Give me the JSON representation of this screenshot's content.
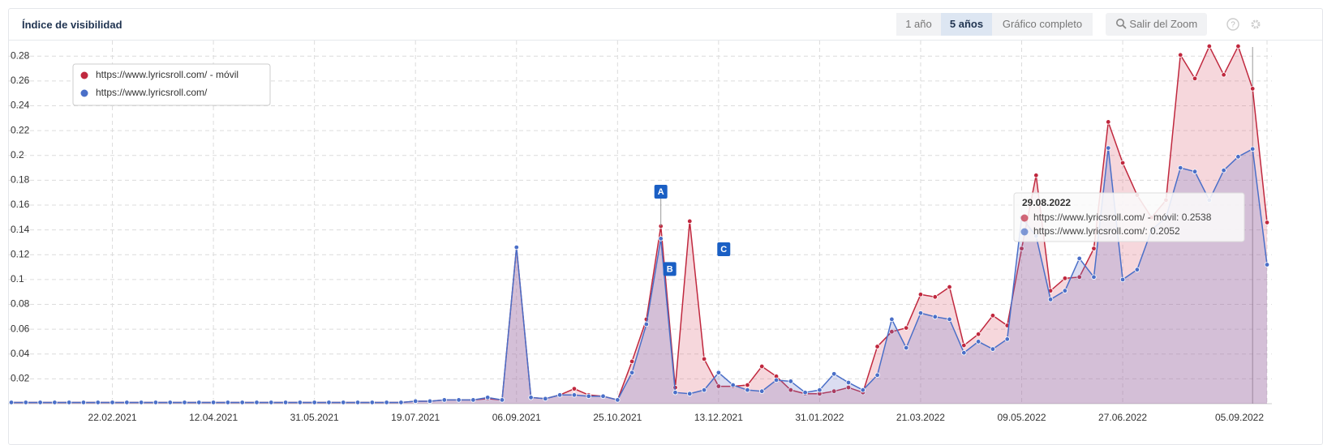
{
  "ui": {
    "range_buttons": [
      "1 año",
      "5 años",
      "Gráfico completo"
    ],
    "active_button": 1,
    "zoom_button": "Salir del Zoom"
  },
  "chart_data": {
    "type": "area",
    "title": "Índice de visibilidad",
    "x": [
      "04.01.2021",
      "11.01.2021",
      "18.01.2021",
      "25.01.2021",
      "01.02.2021",
      "08.02.2021",
      "15.02.2021",
      "22.02.2021",
      "01.03.2021",
      "08.03.2021",
      "15.03.2021",
      "22.03.2021",
      "29.03.2021",
      "05.04.2021",
      "12.04.2021",
      "19.04.2021",
      "26.04.2021",
      "03.05.2021",
      "10.05.2021",
      "17.05.2021",
      "24.05.2021",
      "31.05.2021",
      "07.06.2021",
      "14.06.2021",
      "21.06.2021",
      "28.06.2021",
      "05.07.2021",
      "12.07.2021",
      "19.07.2021",
      "26.07.2021",
      "02.08.2021",
      "09.08.2021",
      "16.08.2021",
      "23.08.2021",
      "30.08.2021",
      "06.09.2021",
      "13.09.2021",
      "20.09.2021",
      "27.09.2021",
      "04.10.2021",
      "11.10.2021",
      "18.10.2021",
      "25.10.2021",
      "01.11.2021",
      "08.11.2021",
      "15.11.2021",
      "22.11.2021",
      "29.11.2021",
      "06.12.2021",
      "13.12.2021",
      "20.12.2021",
      "27.12.2021",
      "03.01.2022",
      "10.01.2022",
      "17.01.2022",
      "24.01.2022",
      "31.01.2022",
      "07.02.2022",
      "14.02.2022",
      "21.02.2022",
      "28.02.2022",
      "07.03.2022",
      "14.03.2022",
      "21.03.2022",
      "28.03.2022",
      "04.04.2022",
      "11.04.2022",
      "18.04.2022",
      "25.04.2022",
      "02.05.2022",
      "09.05.2022",
      "16.05.2022",
      "23.05.2022",
      "30.05.2022",
      "06.06.2022",
      "13.06.2022",
      "20.06.2022",
      "27.06.2022",
      "04.07.2022",
      "11.07.2022",
      "18.07.2022",
      "25.07.2022",
      "01.08.2022",
      "08.08.2022",
      "15.08.2022",
      "22.08.2022",
      "29.08.2022",
      "05.09.2022"
    ],
    "series": [
      {
        "name": "https://www.lyricsroll.com/ - móvil",
        "color": "#c0283e",
        "fill": "rgba(222,110,130,0.28)",
        "values": [
          0.001,
          0.001,
          0.001,
          0.001,
          0.001,
          0.001,
          0.001,
          0.001,
          0.001,
          0.001,
          0.001,
          0.001,
          0.001,
          0.001,
          0.001,
          0.001,
          0.001,
          0.001,
          0.001,
          0.001,
          0.001,
          0.001,
          0.001,
          0.001,
          0.001,
          0.001,
          0.001,
          0.001,
          0.002,
          0.002,
          0.003,
          0.003,
          0.003,
          0.004,
          0.003,
          0.126,
          0.005,
          0.004,
          0.007,
          0.012,
          0.007,
          0.006,
          0.003,
          0.034,
          0.068,
          0.143,
          0.013,
          0.147,
          0.036,
          0.014,
          0.014,
          0.015,
          0.03,
          0.022,
          0.011,
          0.008,
          0.008,
          0.01,
          0.013,
          0.009,
          0.046,
          0.058,
          0.061,
          0.088,
          0.086,
          0.094,
          0.047,
          0.056,
          0.071,
          0.063,
          0.125,
          0.184,
          0.091,
          0.101,
          0.102,
          0.125,
          0.227,
          0.194,
          0.168,
          0.15,
          0.164,
          0.281,
          0.262,
          0.288,
          0.265,
          0.288,
          0.2538,
          0.146
        ]
      },
      {
        "name": "https://www.lyricsroll.com/",
        "color": "#4a6fc8",
        "fill": "rgba(110,120,200,0.25)",
        "values": [
          0.001,
          0.001,
          0.001,
          0.001,
          0.001,
          0.001,
          0.001,
          0.001,
          0.001,
          0.001,
          0.001,
          0.001,
          0.001,
          0.001,
          0.001,
          0.001,
          0.001,
          0.001,
          0.001,
          0.001,
          0.001,
          0.001,
          0.001,
          0.001,
          0.001,
          0.001,
          0.001,
          0.001,
          0.002,
          0.002,
          0.003,
          0.003,
          0.003,
          0.005,
          0.003,
          0.126,
          0.005,
          0.004,
          0.007,
          0.007,
          0.006,
          0.006,
          0.003,
          0.025,
          0.064,
          0.133,
          0.009,
          0.008,
          0.011,
          0.025,
          0.015,
          0.011,
          0.01,
          0.019,
          0.018,
          0.009,
          0.011,
          0.024,
          0.017,
          0.011,
          0.023,
          0.068,
          0.045,
          0.073,
          0.07,
          0.068,
          0.041,
          0.05,
          0.044,
          0.052,
          0.15,
          0.135,
          0.084,
          0.091,
          0.117,
          0.102,
          0.206,
          0.1,
          0.108,
          0.14,
          0.15,
          0.19,
          0.187,
          0.164,
          0.188,
          0.199,
          0.2052,
          0.112
        ]
      }
    ],
    "xlim": [
      "04.01.2021",
      "05.09.2022"
    ],
    "xticks": [
      "22.02.2021",
      "12.04.2021",
      "31.05.2021",
      "19.07.2021",
      "06.09.2021",
      "25.10.2021",
      "13.12.2021",
      "31.01.2022",
      "21.03.2022",
      "09.05.2022",
      "27.06.2022",
      "05.09.2022"
    ],
    "ylim": [
      0,
      0.29
    ],
    "yticks": [
      0.02,
      0.04,
      0.06,
      0.08,
      0.1,
      0.12,
      0.14,
      0.16,
      0.18,
      0.2,
      0.22,
      0.24,
      0.26,
      0.28
    ],
    "grid": true,
    "legend": "top-left",
    "annotations": [
      {
        "label": "A",
        "x": "15.11.2021"
      },
      {
        "label": "B",
        "x": "15.11.2021"
      },
      {
        "label": "C",
        "x": "29.11.2021"
      }
    ],
    "tooltip_index": 86
  }
}
